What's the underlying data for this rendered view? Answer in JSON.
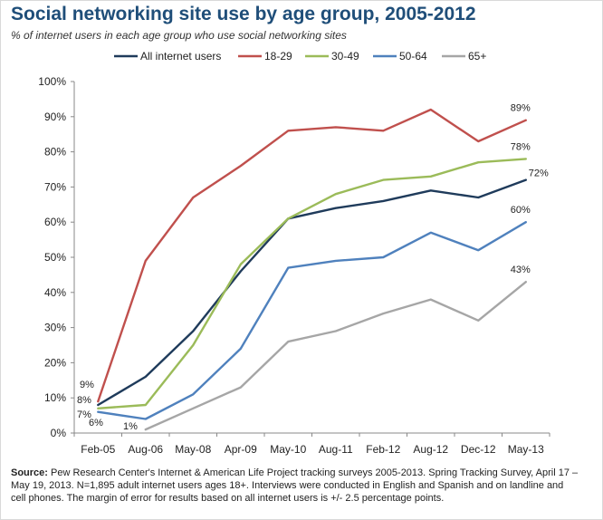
{
  "title": "Social networking site use by age group, 2005-2012",
  "subtitle": "% of internet users in each age group who use social networking sites",
  "source": {
    "label": "Source:",
    "line1": " Pew Research Center's Internet & American Life Project tracking surveys 2005-2013. Spring Tracking Survey, April 17 –",
    "line2": "May 19, 2013. N=1,895 adult internet users ages 18+. Interviews were conducted in English and Spanish and on landline and",
    "line3": "cell phones. The margin of error for results based on all internet users is +/- 2.5 percentage points."
  },
  "chart_data": {
    "type": "line",
    "title": "Social networking site use by age group, 2005-2012",
    "subtitle": "% of internet users in each age group who use social networking sites",
    "xlabel": "",
    "ylabel": "",
    "categories": [
      "Feb-05",
      "Aug-06",
      "May-08",
      "Apr-09",
      "May-10",
      "Aug-11",
      "Feb-12",
      "Aug-12",
      "Dec-12",
      "May-13"
    ],
    "ylim": [
      0,
      100
    ],
    "y_ticks": [
      0,
      10,
      20,
      30,
      40,
      50,
      60,
      70,
      80,
      90,
      100
    ],
    "y_tick_labels": [
      "0%",
      "10%",
      "20%",
      "30%",
      "40%",
      "50%",
      "60%",
      "70%",
      "80%",
      "90%",
      "100%"
    ],
    "grid": false,
    "legend_position": "top",
    "series": [
      {
        "name": "All internet users",
        "color": "#1f3b5b",
        "values": [
          8,
          16,
          29,
          46,
          61,
          64,
          66,
          69,
          67,
          72
        ],
        "start_label": "8%",
        "end_label": "72%"
      },
      {
        "name": "18-29",
        "color": "#c0504d",
        "values": [
          9,
          49,
          67,
          76,
          86,
          87,
          86,
          92,
          83,
          89
        ],
        "start_label": "9%",
        "end_label": "89%"
      },
      {
        "name": "30-49",
        "color": "#9bbb59",
        "values": [
          7,
          8,
          25,
          48,
          61,
          68,
          72,
          73,
          77,
          78
        ],
        "start_label": "7%",
        "end_label": "78%"
      },
      {
        "name": "50-64",
        "color": "#4f81bd",
        "values": [
          6,
          4,
          11,
          24,
          47,
          49,
          50,
          57,
          52,
          60
        ],
        "start_label": "6%",
        "end_label": "60%"
      },
      {
        "name": "65+",
        "color": "#a6a6a6",
        "values": [
          null,
          1,
          7,
          13,
          26,
          29,
          34,
          38,
          32,
          43
        ],
        "start_label": "1%",
        "end_label": "43%"
      }
    ]
  }
}
